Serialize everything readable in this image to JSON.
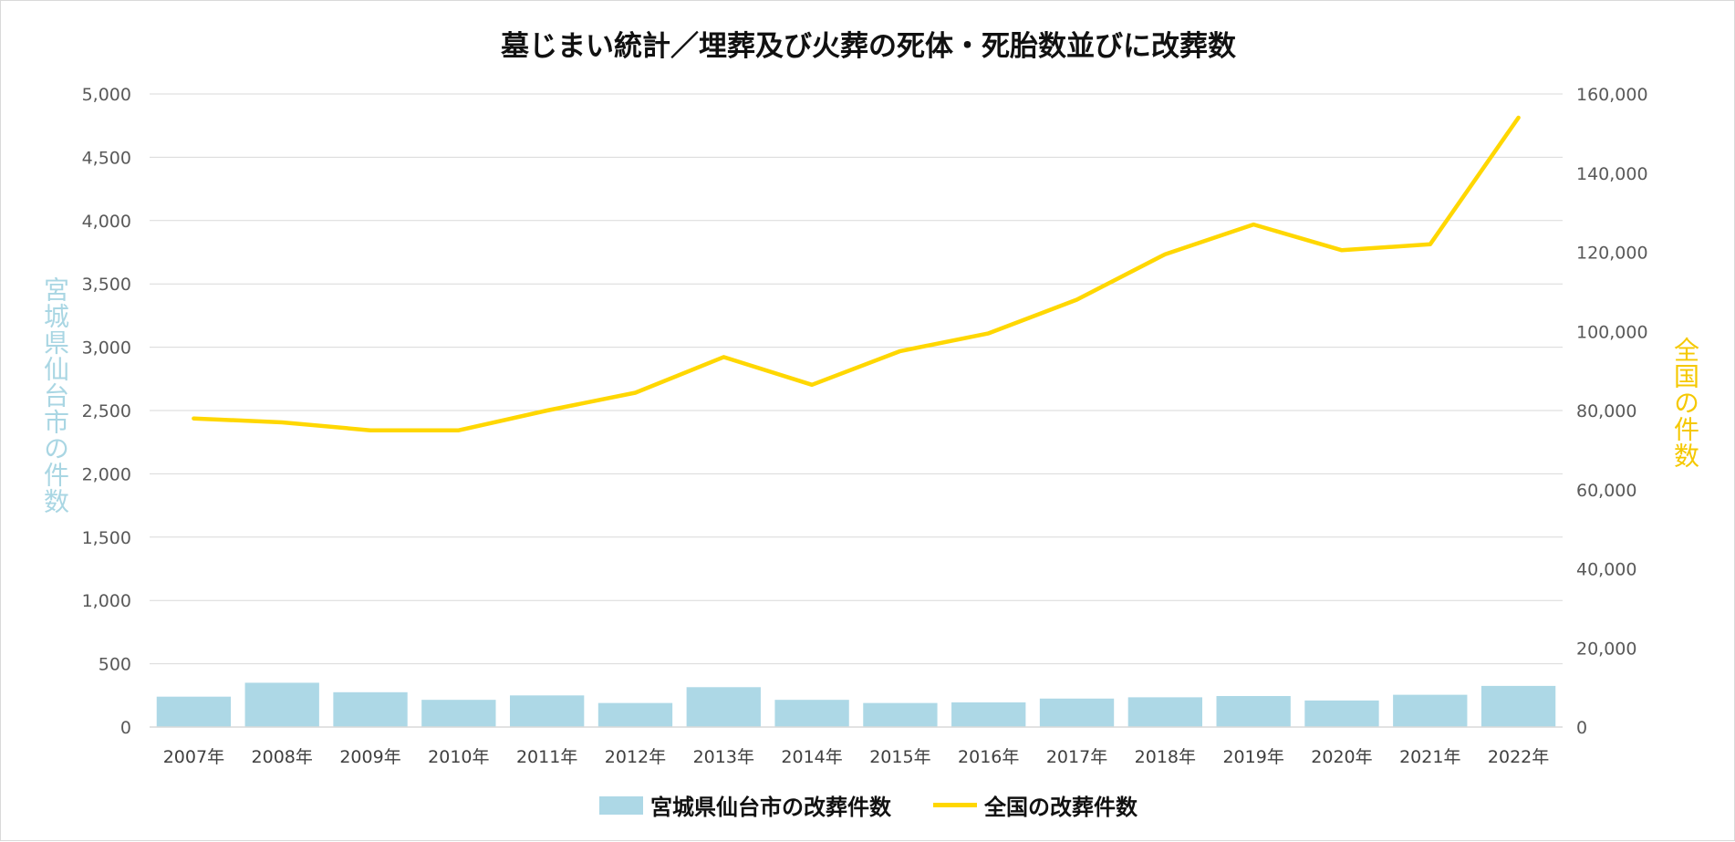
{
  "chart_data": {
    "type": "bar+line",
    "title": "墓じまい統計／埋葬及び火葬の死体・死胎数並びに改葬数",
    "categories": [
      "2007年",
      "2008年",
      "2009年",
      "2010年",
      "2011年",
      "2012年",
      "2013年",
      "2014年",
      "2015年",
      "2016年",
      "2017年",
      "2018年",
      "2019年",
      "2020年",
      "2021年",
      "2022年"
    ],
    "series": [
      {
        "name": "宮城県仙台市の改葬件数",
        "type": "bar",
        "axis": "left",
        "color": "#add8e6",
        "values": [
          240,
          350,
          275,
          215,
          250,
          190,
          315,
          215,
          190,
          195,
          225,
          235,
          245,
          210,
          255,
          325
        ]
      },
      {
        "name": "全国の改葬件数",
        "type": "line",
        "axis": "right",
        "color": "#ffd700",
        "values": [
          78000,
          77000,
          75000,
          75000,
          80000,
          84500,
          93500,
          86500,
          95000,
          99500,
          108000,
          119500,
          127000,
          120500,
          122000,
          154000
        ]
      }
    ],
    "ylabel_left": "宮城県仙台市の件数",
    "ylabel_right": "全国の件数",
    "ylim_left": [
      0,
      5000
    ],
    "ylim_right": [
      0,
      160000
    ],
    "yticks_left": [
      "5,000",
      "4,500",
      "4,000",
      "3,500",
      "3,000",
      "2,500",
      "2,000",
      "1,500",
      "1,000",
      "500",
      "0"
    ],
    "yticks_right": [
      "160,000",
      "140,000",
      "120,000",
      "100,000",
      "80,000",
      "60,000",
      "40,000",
      "20,000",
      "0"
    ],
    "grid": true,
    "legend_position": "bottom"
  }
}
